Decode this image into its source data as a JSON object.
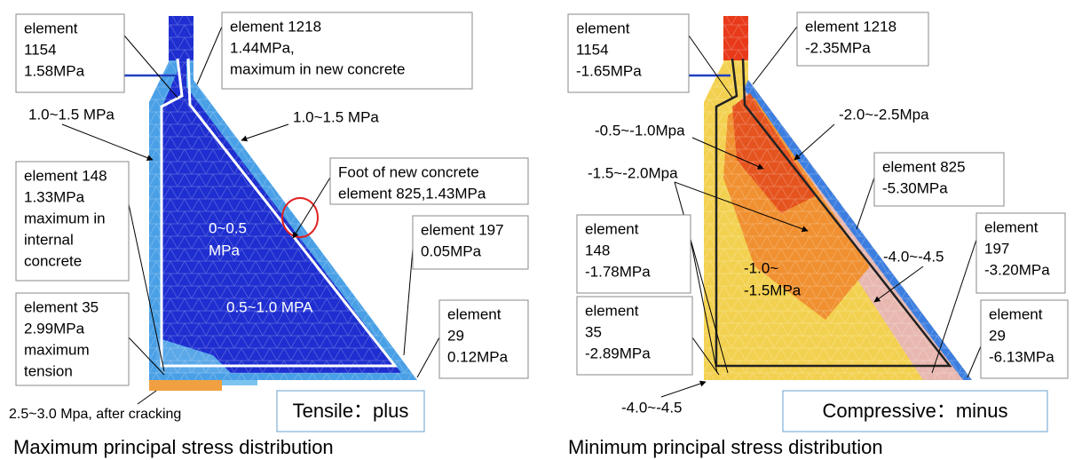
{
  "left": {
    "callouts": [
      [
        "element",
        "1154",
        "1.58MPa"
      ],
      [
        "element 1218",
        "1.44MPa,",
        "maximum in new concrete"
      ],
      [
        "Foot of new concrete",
        "element 825,1.43MPa"
      ],
      [
        "element 148",
        "1.33MPa",
        "maximum in",
        "internal",
        "concrete"
      ],
      [
        "element 197",
        "0.05MPa"
      ],
      [
        "element 35",
        "2.99MPa",
        "maximum",
        "tension"
      ],
      [
        "element",
        "29",
        "0.12MPa"
      ]
    ],
    "labels": [
      "1.0~1.5 MPa",
      "1.0~1.5 MPa",
      "0~0.5",
      "MPa",
      "0.5~1.0 MPA",
      "2.5~3.0 Mpa, after cracking"
    ],
    "legend": "Tensile：plus",
    "caption": "Maximum principal stress distribution"
  },
  "right": {
    "callouts": [
      [
        "element",
        "1154",
        "-1.65MPa"
      ],
      [
        "element 1218",
        "-2.35MPa"
      ],
      [
        "element 825",
        "-5.30MPa"
      ],
      [
        "element",
        "148",
        "-1.78MPa"
      ],
      [
        "element",
        "197",
        "-3.20MPa"
      ],
      [
        "element",
        "35",
        "-2.89MPa"
      ],
      [
        "element",
        "29",
        "-6.13MPa"
      ]
    ],
    "labels": [
      "-2.0~-2.5Mpa",
      "-0.5~-1.0Mpa",
      "-1.5~-2.0Mpa",
      "-1.0~",
      "-1.5MPa",
      "-4.0~-4.5",
      "-4.0~-4.5"
    ],
    "legend": "Compressive：minus",
    "caption": "Minimum principal stress distribution"
  }
}
